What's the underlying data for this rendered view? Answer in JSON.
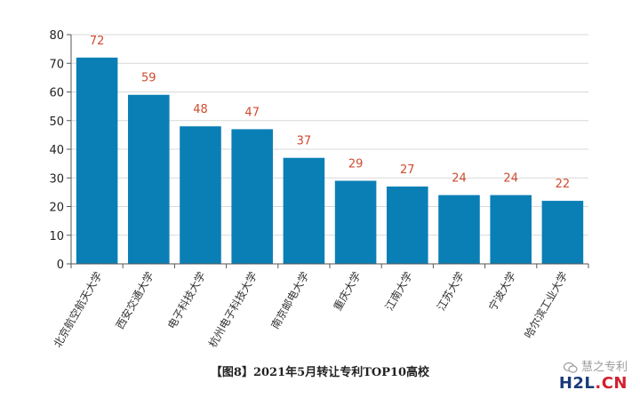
{
  "chart_data": {
    "type": "bar",
    "categories": [
      "北京航空航天大学",
      "西安交通大学",
      "电子科技大学",
      "杭州电子科技大学",
      "南京邮电大学",
      "重庆大学",
      "江南大学",
      "江苏大学",
      "宁波大学",
      "哈尔滨工业大学"
    ],
    "values": [
      72,
      59,
      48,
      47,
      37,
      29,
      27,
      24,
      24,
      22
    ],
    "ylim": [
      0,
      80
    ],
    "yticks": [
      0,
      10,
      20,
      30,
      40,
      50,
      60,
      70,
      80
    ],
    "grid": true,
    "colors": {
      "bar": "#0a7fb6",
      "data_label": "#d04a2e",
      "grid": "#d9d9d9",
      "axis": "#555555"
    }
  },
  "caption": "【图8】2021年5月转让专利TOP10高校",
  "watermark": {
    "top_text": "慧之专利",
    "logo_main": "H2L",
    "logo_suffix": ".CN",
    "icon": "wechat-icon"
  }
}
